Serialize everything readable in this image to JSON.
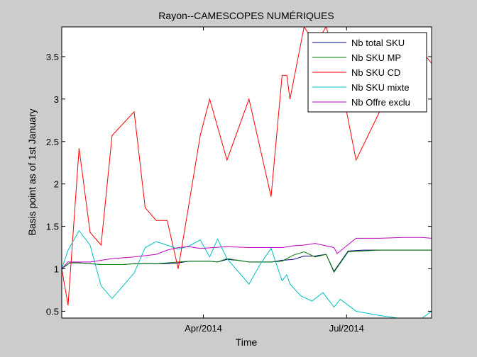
{
  "chart_data": {
    "type": "line",
    "title": "Rayon--CAMESCOPES NUMÉRIQUES",
    "xlabel": "Time",
    "ylabel": "Basis point as of 1st January",
    "xlim": [
      "2014-01-01",
      "2014-08-24"
    ],
    "ylim": [
      0.42,
      3.85
    ],
    "x_ticks": [
      {
        "date": "2014-04-01",
        "label": "Apr/2014"
      },
      {
        "date": "2014-07-01",
        "label": "Jul/2014"
      }
    ],
    "y_ticks": [
      0.5,
      1,
      1.5,
      2,
      2.5,
      3,
      3.5
    ],
    "grid": false,
    "legend_position": "top-right",
    "series": [
      {
        "name": "Nb total SKU",
        "color": "#000080",
        "points": [
          [
            "2014-01-01",
            1.0
          ],
          [
            "2014-01-06",
            1.07
          ],
          [
            "2014-01-12",
            1.07
          ],
          [
            "2014-01-19",
            1.06
          ],
          [
            "2014-01-26",
            1.05
          ],
          [
            "2014-02-02",
            1.05
          ],
          [
            "2014-02-09",
            1.05
          ],
          [
            "2014-02-16",
            1.06
          ],
          [
            "2014-02-23",
            1.06
          ],
          [
            "2014-03-02",
            1.06
          ],
          [
            "2014-03-09",
            1.06
          ],
          [
            "2014-03-16",
            1.07
          ],
          [
            "2014-03-23",
            1.09
          ],
          [
            "2014-03-30",
            1.09
          ],
          [
            "2014-04-05",
            1.09
          ],
          [
            "2014-04-10",
            1.08
          ],
          [
            "2014-04-16",
            1.11
          ],
          [
            "2014-04-23",
            1.1
          ],
          [
            "2014-04-30",
            1.08
          ],
          [
            "2014-05-07",
            1.08
          ],
          [
            "2014-05-14",
            1.08
          ],
          [
            "2014-05-21",
            1.1
          ],
          [
            "2014-05-28",
            1.11
          ],
          [
            "2014-06-04",
            1.15
          ],
          [
            "2014-06-11",
            1.15
          ],
          [
            "2014-06-18",
            1.17
          ],
          [
            "2014-06-23",
            0.97
          ],
          [
            "2014-07-02",
            1.21
          ],
          [
            "2014-07-12",
            1.22
          ],
          [
            "2014-07-22",
            1.22
          ],
          [
            "2014-08-01",
            1.22
          ],
          [
            "2014-08-10",
            1.22
          ],
          [
            "2014-08-24",
            1.22
          ]
        ]
      },
      {
        "name": "Nb SKU MP",
        "color": "#008000",
        "points": [
          [
            "2014-01-01",
            1.0
          ],
          [
            "2014-01-06",
            1.07
          ],
          [
            "2014-01-12",
            1.07
          ],
          [
            "2014-01-19",
            1.06
          ],
          [
            "2014-01-26",
            1.05
          ],
          [
            "2014-02-02",
            1.05
          ],
          [
            "2014-02-09",
            1.05
          ],
          [
            "2014-02-16",
            1.06
          ],
          [
            "2014-02-23",
            1.06
          ],
          [
            "2014-03-02",
            1.06
          ],
          [
            "2014-03-09",
            1.07
          ],
          [
            "2014-03-16",
            1.08
          ],
          [
            "2014-03-23",
            1.09
          ],
          [
            "2014-03-30",
            1.09
          ],
          [
            "2014-04-05",
            1.09
          ],
          [
            "2014-04-10",
            1.08
          ],
          [
            "2014-04-16",
            1.12
          ],
          [
            "2014-04-23",
            1.1
          ],
          [
            "2014-04-30",
            1.08
          ],
          [
            "2014-05-07",
            1.08
          ],
          [
            "2014-05-14",
            1.08
          ],
          [
            "2014-05-21",
            1.09
          ],
          [
            "2014-05-28",
            1.16
          ],
          [
            "2014-06-04",
            1.2
          ],
          [
            "2014-06-11",
            1.14
          ],
          [
            "2014-06-18",
            1.17
          ],
          [
            "2014-06-23",
            0.96
          ],
          [
            "2014-07-02",
            1.2
          ],
          [
            "2014-07-12",
            1.21
          ],
          [
            "2014-07-22",
            1.22
          ],
          [
            "2014-08-01",
            1.22
          ],
          [
            "2014-08-10",
            1.22
          ],
          [
            "2014-08-24",
            1.22
          ]
        ]
      },
      {
        "name": "Nb SKU CD",
        "color": "#ff0000",
        "points": [
          [
            "2014-01-01",
            1.0
          ],
          [
            "2014-01-05",
            0.57
          ],
          [
            "2014-01-12",
            2.42
          ],
          [
            "2014-01-19",
            1.43
          ],
          [
            "2014-01-26",
            1.28
          ],
          [
            "2014-02-02",
            2.57
          ],
          [
            "2014-02-16",
            2.85
          ],
          [
            "2014-02-23",
            1.72
          ],
          [
            "2014-03-02",
            1.57
          ],
          [
            "2014-03-09",
            1.57
          ],
          [
            "2014-03-16",
            1.0
          ],
          [
            "2014-03-30",
            2.57
          ],
          [
            "2014-04-05",
            3.0
          ],
          [
            "2014-04-16",
            2.28
          ],
          [
            "2014-04-30",
            3.0
          ],
          [
            "2014-05-14",
            1.85
          ],
          [
            "2014-05-21",
            3.28
          ],
          [
            "2014-05-24",
            3.28
          ],
          [
            "2014-05-26",
            3.0
          ],
          [
            "2014-06-04",
            3.85
          ],
          [
            "2014-06-11",
            3.65
          ],
          [
            "2014-06-18",
            3.85
          ],
          [
            "2014-06-25",
            3.42
          ],
          [
            "2014-07-07",
            2.28
          ],
          [
            "2014-07-22",
            2.85
          ],
          [
            "2014-08-06",
            3.28
          ],
          [
            "2014-08-18",
            3.56
          ],
          [
            "2014-08-24",
            3.42
          ]
        ]
      },
      {
        "name": "Nb SKU mixte",
        "color": "#00bfbf",
        "points": [
          [
            "2014-01-01",
            1.0
          ],
          [
            "2014-01-05",
            1.22
          ],
          [
            "2014-01-12",
            1.45
          ],
          [
            "2014-01-19",
            1.28
          ],
          [
            "2014-01-26",
            0.8
          ],
          [
            "2014-02-02",
            0.65
          ],
          [
            "2014-02-16",
            0.95
          ],
          [
            "2014-02-23",
            1.25
          ],
          [
            "2014-03-02",
            1.32
          ],
          [
            "2014-03-09",
            1.28
          ],
          [
            "2014-03-16",
            1.23
          ],
          [
            "2014-03-23",
            1.27
          ],
          [
            "2014-03-30",
            1.34
          ],
          [
            "2014-04-05",
            1.14
          ],
          [
            "2014-04-10",
            1.35
          ],
          [
            "2014-04-16",
            1.12
          ],
          [
            "2014-04-30",
            0.82
          ],
          [
            "2014-05-07",
            1.05
          ],
          [
            "2014-05-14",
            1.24
          ],
          [
            "2014-05-21",
            0.86
          ],
          [
            "2014-05-24",
            0.93
          ],
          [
            "2014-05-26",
            0.82
          ],
          [
            "2014-06-02",
            0.68
          ],
          [
            "2014-06-09",
            0.62
          ],
          [
            "2014-06-16",
            0.72
          ],
          [
            "2014-06-23",
            0.55
          ],
          [
            "2014-06-27",
            0.64
          ],
          [
            "2014-07-07",
            0.5
          ],
          [
            "2014-07-22",
            0.45
          ],
          [
            "2014-08-06",
            0.41
          ],
          [
            "2014-08-18",
            0.42
          ],
          [
            "2014-08-24",
            0.5
          ]
        ]
      },
      {
        "name": "Nb Offre exclu",
        "color": "#bf00bf",
        "points": [
          [
            "2014-01-01",
            1.0
          ],
          [
            "2014-01-05",
            1.08
          ],
          [
            "2014-01-19",
            1.08
          ],
          [
            "2014-01-26",
            1.1
          ],
          [
            "2014-02-02",
            1.12
          ],
          [
            "2014-02-16",
            1.14
          ],
          [
            "2014-03-02",
            1.17
          ],
          [
            "2014-03-09",
            1.22
          ],
          [
            "2014-03-16",
            1.25
          ],
          [
            "2014-03-23",
            1.26
          ],
          [
            "2014-03-30",
            1.24
          ],
          [
            "2014-04-16",
            1.26
          ],
          [
            "2014-04-30",
            1.25
          ],
          [
            "2014-05-14",
            1.25
          ],
          [
            "2014-05-21",
            1.25
          ],
          [
            "2014-05-28",
            1.27
          ],
          [
            "2014-06-04",
            1.28
          ],
          [
            "2014-06-11",
            1.3
          ],
          [
            "2014-06-18",
            1.27
          ],
          [
            "2014-06-23",
            1.25
          ],
          [
            "2014-06-25",
            1.18
          ],
          [
            "2014-07-07",
            1.36
          ],
          [
            "2014-07-22",
            1.36
          ],
          [
            "2014-08-06",
            1.37
          ],
          [
            "2014-08-18",
            1.37
          ],
          [
            "2014-08-24",
            1.36
          ]
        ]
      }
    ]
  }
}
